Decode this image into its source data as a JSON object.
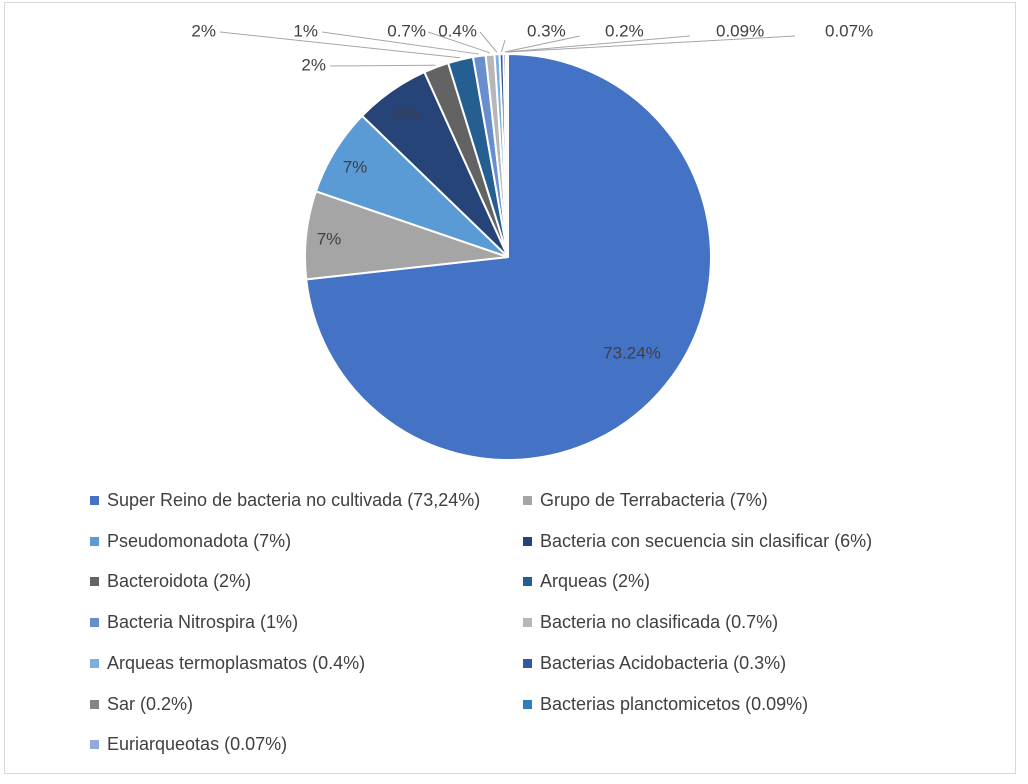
{
  "chart_data": {
    "type": "pie",
    "title": "",
    "slices": [
      {
        "label": "Super Reino de bacteria no cultivada (73,24%)",
        "value": 73.24,
        "data_label": "73.24%",
        "color": "#4472C4"
      },
      {
        "label": "Grupo de Terrabacteria (7%)",
        "value": 7,
        "data_label": "7%",
        "color": "#A5A5A5"
      },
      {
        "label": "Pseudomonadota (7%)",
        "value": 7,
        "data_label": "7%",
        "color": "#5B9BD5"
      },
      {
        "label": "Bacteria con secuencia sin clasificar (6%)",
        "value": 6,
        "data_label": "6%",
        "color": "#264478"
      },
      {
        "label": "Bacteroidota (2%)",
        "value": 2,
        "data_label": "2%",
        "color": "#636363"
      },
      {
        "label": "Arqueas  (2%)",
        "value": 2,
        "data_label": "2%",
        "color": "#255E91"
      },
      {
        "label": "Bacteria Nitrospira  (1%)",
        "value": 1,
        "data_label": "1%",
        "color": "#698ED0"
      },
      {
        "label": "Bacteria no clasificada (0.7%)",
        "value": 0.7,
        "data_label": "0.7%",
        "color": "#B7B7B7"
      },
      {
        "label": "Arqueas termoplasmatos  (0.4%)",
        "value": 0.4,
        "data_label": "0.4%",
        "color": "#7CAFDD"
      },
      {
        "label": "Bacterias Acidobacteria  (0.3%)",
        "value": 0.3,
        "data_label": "0.3%",
        "color": "#335AA1"
      },
      {
        "label": "Sar (0.2%)",
        "value": 0.2,
        "data_label": "0.2%",
        "color": "#848484"
      },
      {
        "label": "Bacterias planctomicetos  (0.09%)",
        "value": 0.09,
        "data_label": "0.09%",
        "color": "#327DC2"
      },
      {
        "label": "Euriarqueotas  (0.07%)",
        "value": 0.07,
        "data_label": "0.07%",
        "color": "#8FAADC"
      }
    ],
    "legend_position": "bottom"
  }
}
